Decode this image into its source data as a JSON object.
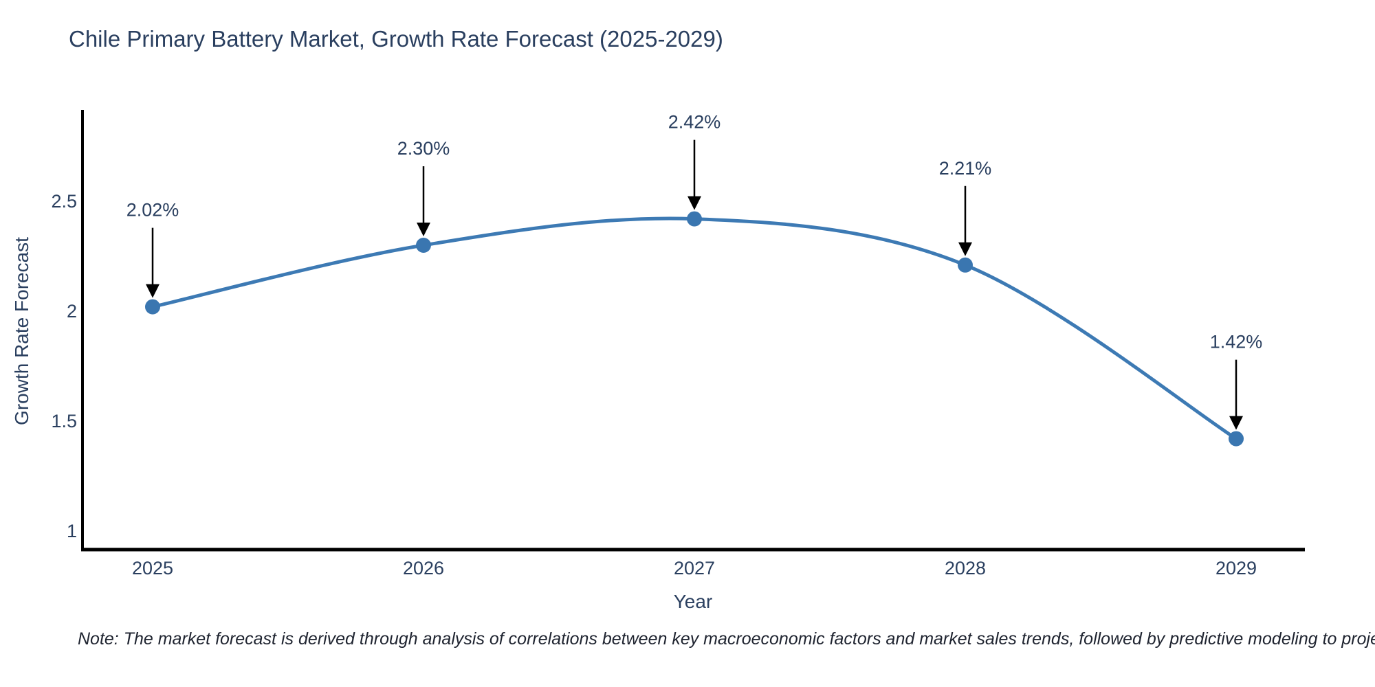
{
  "note": {
    "text": "Note: The market forecast is derived through analysis of correlations between key macroeconomic factors and market sales trends, followed by predictive modeling to project future sales"
  },
  "chart_data": {
    "type": "line",
    "title": "Chile Primary Battery Market, Growth Rate Forecast (2025-2029)",
    "xlabel": "Year",
    "ylabel": "Growth Rate Forecast",
    "x": [
      2025,
      2026,
      2027,
      2028,
      2029
    ],
    "series": [
      {
        "name": "Growth Rate Forecast",
        "values": [
          2.02,
          2.3,
          2.42,
          2.21,
          1.42
        ]
      }
    ],
    "point_labels": [
      "2.02%",
      "2.30%",
      "2.42%",
      "2.21%",
      "1.42%"
    ],
    "xtick_labels": [
      "2025",
      "2026",
      "2027",
      "2028",
      "2029"
    ],
    "yticks": [
      2.5,
      2,
      1.5,
      1
    ],
    "ytick_labels": [
      "2.5",
      "2",
      "1.5",
      "1"
    ],
    "ylim": [
      0.92,
      2.92
    ],
    "line_shape": "spline",
    "grid": false,
    "legend": "none",
    "annotations_arrows": true,
    "colors": {
      "line": "#3d7ab4",
      "marker": "#3a76b0",
      "axis": "#000000",
      "text": "#2a3f5f",
      "arrow": "#000000",
      "background": "#ffffff"
    }
  }
}
